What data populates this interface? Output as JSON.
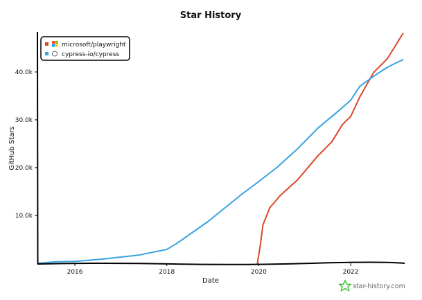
{
  "chart_data": {
    "type": "line",
    "title": "Star History",
    "xlabel": "Date",
    "ylabel": "GitHub Stars",
    "xlim": [
      2015.2,
      2023.16
    ],
    "ylim": [
      0,
      48.1
    ],
    "x_ticks": [
      2016,
      2018,
      2020,
      2022
    ],
    "x_tick_labels": [
      "2016",
      "2018",
      "2020",
      "2022"
    ],
    "y_ticks": [
      10,
      20,
      30,
      40
    ],
    "y_tick_labels": [
      "10.0k",
      "20.0k",
      "30.0k",
      "40.0k"
    ],
    "y_unit": "thousands of stars",
    "grid": false,
    "legend_position": "top-left",
    "series": [
      {
        "name": "microsoft/playwright",
        "color": "#dd4528",
        "icon": "microsoft-logo-icon",
        "x": [
          2019.97,
          2020.03,
          2020.09,
          2020.24,
          2020.47,
          2020.84,
          2021.29,
          2021.59,
          2021.82,
          2022.0,
          2022.2,
          2022.5,
          2022.8,
          2023.14
        ],
        "y": [
          0,
          3.5,
          8.0,
          11.6,
          14.2,
          17.4,
          22.5,
          25.4,
          29.0,
          30.7,
          34.8,
          39.9,
          42.8,
          48.1
        ]
      },
      {
        "name": "cypress-io/cypress",
        "color": "#37a3e0",
        "icon": "cypress-logo-icon",
        "x": [
          2015.2,
          2015.58,
          2016.0,
          2016.63,
          2017.38,
          2018.0,
          2018.21,
          2018.89,
          2019.64,
          2020.0,
          2020.39,
          2020.84,
          2021.29,
          2021.74,
          2022.0,
          2022.2,
          2022.5,
          2022.8,
          2023.14
        ],
        "y": [
          0,
          0.3,
          0.4,
          0.9,
          1.7,
          2.9,
          4.1,
          8.7,
          14.5,
          17.1,
          20.0,
          23.9,
          28.3,
          31.9,
          34.1,
          37.0,
          39.1,
          41.0,
          42.6
        ]
      }
    ]
  },
  "watermark": {
    "text": "star-history.com",
    "icon": "star-icon",
    "color": "#3cc13c"
  }
}
